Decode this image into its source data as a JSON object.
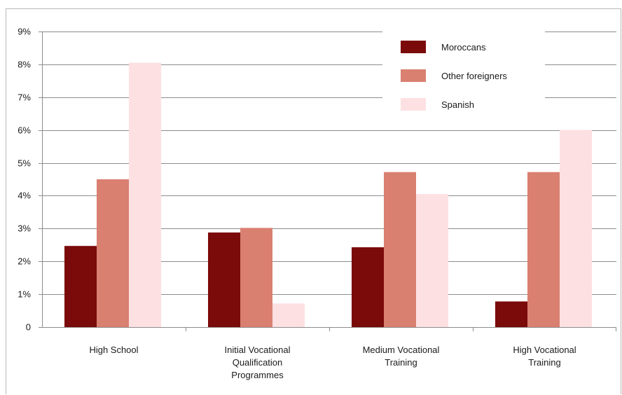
{
  "chart_data": {
    "type": "bar",
    "categories": [
      [
        "High School"
      ],
      [
        "Initial Vocational",
        "Qualification",
        "Programmes"
      ],
      [
        "Medium Vocational",
        "Training"
      ],
      [
        "High Vocational",
        "Training"
      ]
    ],
    "series": [
      {
        "name": "Moroccans",
        "color": "#7b0a0a",
        "values": [
          2.47,
          2.88,
          2.43,
          0.78
        ]
      },
      {
        "name": "Other foreigners",
        "color": "#d98070",
        "values": [
          4.5,
          3.02,
          4.72,
          4.72
        ]
      },
      {
        "name": "Spanish",
        "color": "#fde0e2",
        "values": [
          8.05,
          0.72,
          4.05,
          6.0
        ]
      }
    ],
    "y_ticks": [
      {
        "value": 0,
        "label": "0"
      },
      {
        "value": 1,
        "label": "1%"
      },
      {
        "value": 2,
        "label": "2%"
      },
      {
        "value": 3,
        "label": "3%"
      },
      {
        "value": 4,
        "label": "4%"
      },
      {
        "value": 5,
        "label": "5%"
      },
      {
        "value": 6,
        "label": "6%"
      },
      {
        "value": 7,
        "label": "7%"
      },
      {
        "value": 8,
        "label": "8%"
      },
      {
        "value": 9,
        "label": "9%"
      }
    ],
    "ylim": [
      0,
      9
    ],
    "grid": true,
    "legend_position": "top-right"
  }
}
